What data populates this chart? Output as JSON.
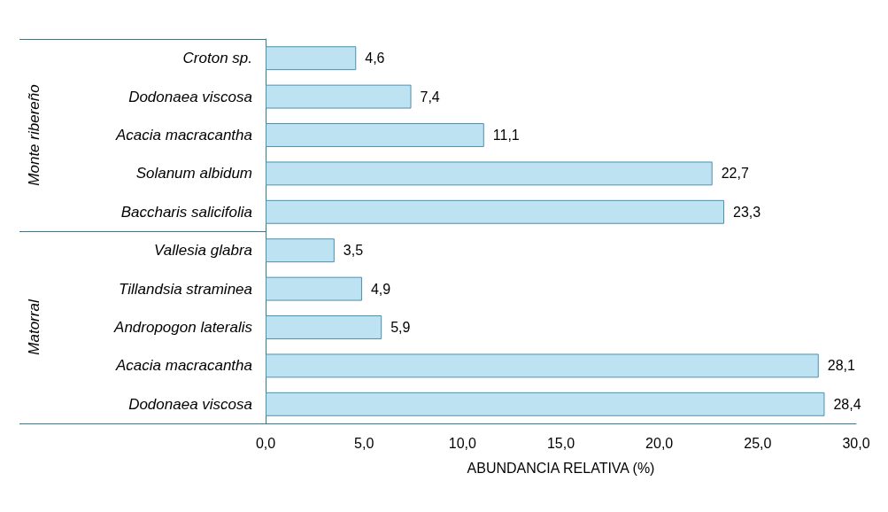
{
  "chart_data": {
    "type": "bar",
    "orientation": "horizontal",
    "xlabel": "ABUNDANCIA RELATIVA (%)",
    "categories": [
      "Croton sp.",
      "Dodonaea viscosa",
      "Acacia macracantha",
      "Solanum albidum",
      "Baccharis salicifolia",
      "Vallesia glabra",
      "Tillandsia straminea",
      "Andropogon lateralis",
      "Acacia macracantha",
      "Dodonaea viscosa"
    ],
    "values": [
      4.6,
      7.4,
      11.1,
      22.7,
      23.3,
      3.5,
      4.9,
      5.9,
      28.1,
      28.4
    ],
    "value_labels": [
      "4,6",
      "7,4",
      "11,1",
      "22,7",
      "23,3",
      "3,5",
      "4,9",
      "5,9",
      "28,1",
      "28,4"
    ],
    "color": "#bde3f3",
    "xlim": [
      0,
      30
    ],
    "xticks": [
      {
        "value": 0,
        "label": "0,0"
      },
      {
        "value": 5,
        "label": "5,0"
      },
      {
        "value": 10,
        "label": "10,0"
      },
      {
        "value": 15,
        "label": "15,0"
      },
      {
        "value": 20,
        "label": "20,0"
      },
      {
        "value": 25,
        "label": "25,0"
      },
      {
        "value": 30,
        "label": "30,0"
      }
    ],
    "annotations": [
      "Monte ribereño",
      "Matorral"
    ],
    "grid": false
  }
}
